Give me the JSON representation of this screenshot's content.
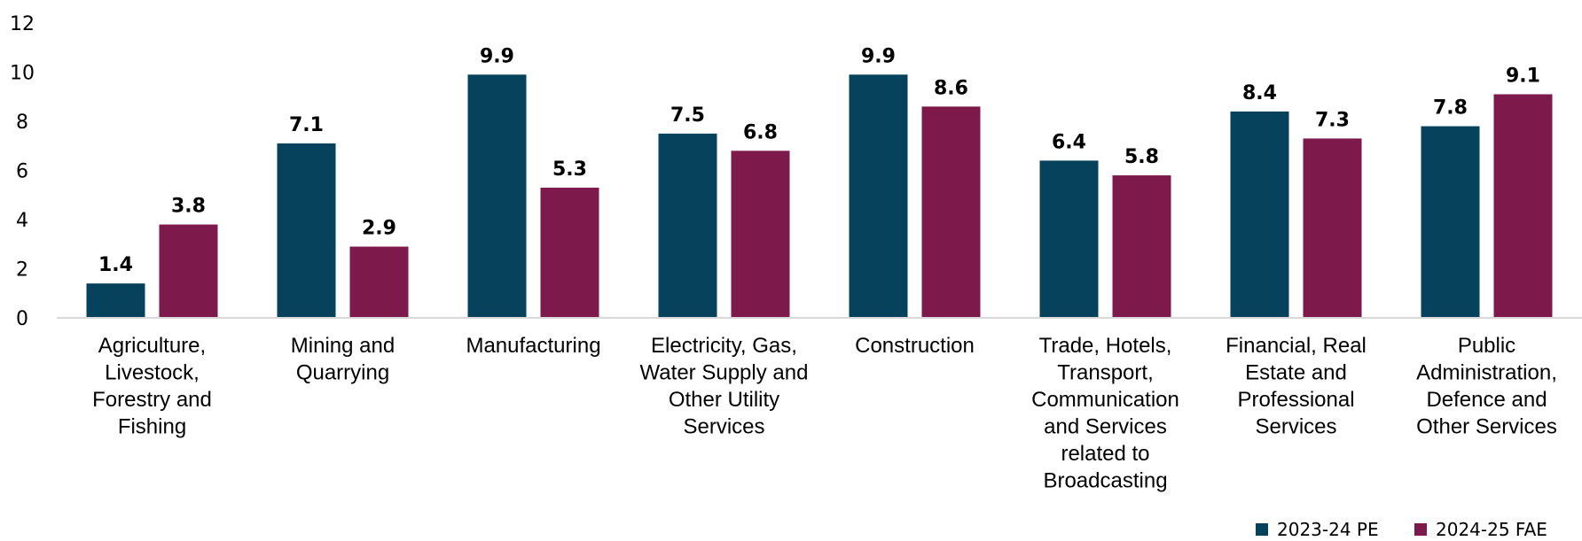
{
  "chart_data": {
    "type": "bar",
    "categories": [
      [
        "Agriculture,",
        "Livestock,",
        "Forestry and",
        "Fishing"
      ],
      [
        "Mining and",
        "Quarrying"
      ],
      [
        "Manufacturing"
      ],
      [
        "Electricity, Gas,",
        "Water Supply and",
        "Other Utility",
        "Services"
      ],
      [
        "Construction"
      ],
      [
        "Trade, Hotels,",
        "Transport,",
        "Communication",
        "and Services",
        "related to",
        "Broadcasting"
      ],
      [
        "Financial, Real",
        "Estate and",
        "Professional",
        "Services"
      ],
      [
        "Public",
        "Administration,",
        "Defence and",
        "Other Services"
      ]
    ],
    "series": [
      {
        "name": "2023-24 PE",
        "color": "#06425c",
        "values": [
          1.4,
          7.1,
          9.9,
          7.5,
          9.9,
          6.4,
          8.4,
          7.8
        ],
        "labels": [
          "1.4",
          "7.1",
          "9.9",
          "7.5",
          "9.9",
          "6.4",
          "8.4",
          "7.8"
        ]
      },
      {
        "name": "2024-25 FAE",
        "color": "#7d1a4b",
        "values": [
          3.8,
          2.9,
          5.3,
          6.8,
          8.6,
          5.8,
          7.3,
          9.1
        ],
        "labels": [
          "3.8",
          "2.9",
          "5.3",
          "6.8",
          "8.6",
          "5.8",
          "7.3",
          "9.1"
        ]
      }
    ],
    "ylim": [
      0,
      12
    ],
    "yticks": [
      "0",
      "2",
      "4",
      "6",
      "8",
      "10",
      "12"
    ],
    "grid": false,
    "legend_position": "bottom-right",
    "title": "",
    "xlabel": "",
    "ylabel": ""
  }
}
